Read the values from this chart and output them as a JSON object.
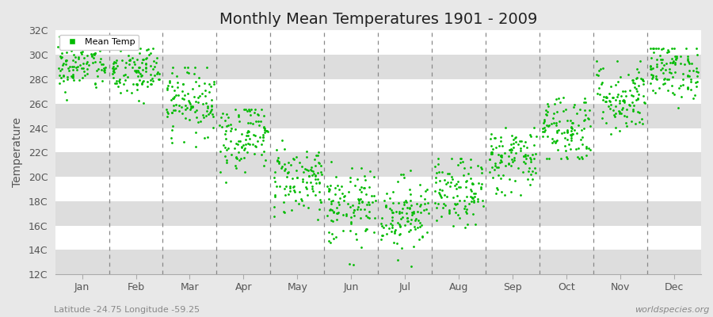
{
  "title": "Monthly Mean Temperatures 1901 - 2009",
  "ylabel": "Temperature",
  "xlabel_bottom_left": "Latitude -24.75 Longitude -59.25",
  "xlabel_bottom_right": "worldspecies.org",
  "legend_label": "Mean Temp",
  "ylim": [
    12,
    32
  ],
  "yticks": [
    12,
    14,
    16,
    18,
    20,
    22,
    24,
    26,
    28,
    30,
    32
  ],
  "ytick_labels": [
    "12C",
    "14C",
    "16C",
    "18C",
    "20C",
    "22C",
    "24C",
    "26C",
    "28C",
    "30C",
    "32C"
  ],
  "months": [
    "Jan",
    "Feb",
    "Mar",
    "Apr",
    "May",
    "Jun",
    "Jul",
    "Aug",
    "Sep",
    "Oct",
    "Nov",
    "Dec"
  ],
  "dot_color": "#00BB00",
  "dot_size": 4,
  "background_color": "#E8E8E8",
  "plot_bg_color": "#FFFFFF",
  "band_light": "#FFFFFF",
  "band_dark": "#DDDDDD",
  "grid_line_color": "#CCCCCC",
  "dashed_line_color": "#888888",
  "title_fontsize": 14,
  "axis_label_fontsize": 10,
  "tick_fontsize": 9,
  "n_years": 109,
  "month_means": [
    29.2,
    28.6,
    26.3,
    23.5,
    19.8,
    17.4,
    17.0,
    18.6,
    21.5,
    24.0,
    26.5,
    28.8
  ],
  "month_stds": [
    1.1,
    1.2,
    1.4,
    1.5,
    1.5,
    1.6,
    1.5,
    1.4,
    1.4,
    1.5,
    1.5,
    1.2
  ],
  "month_mins": [
    25.5,
    25.5,
    22.5,
    19.5,
    16.5,
    12.0,
    12.5,
    15.5,
    18.5,
    21.5,
    23.5,
    25.5
  ],
  "month_maxs": [
    31.5,
    30.5,
    29.0,
    25.5,
    23.0,
    22.5,
    20.5,
    21.5,
    25.0,
    26.5,
    29.5,
    30.5
  ]
}
